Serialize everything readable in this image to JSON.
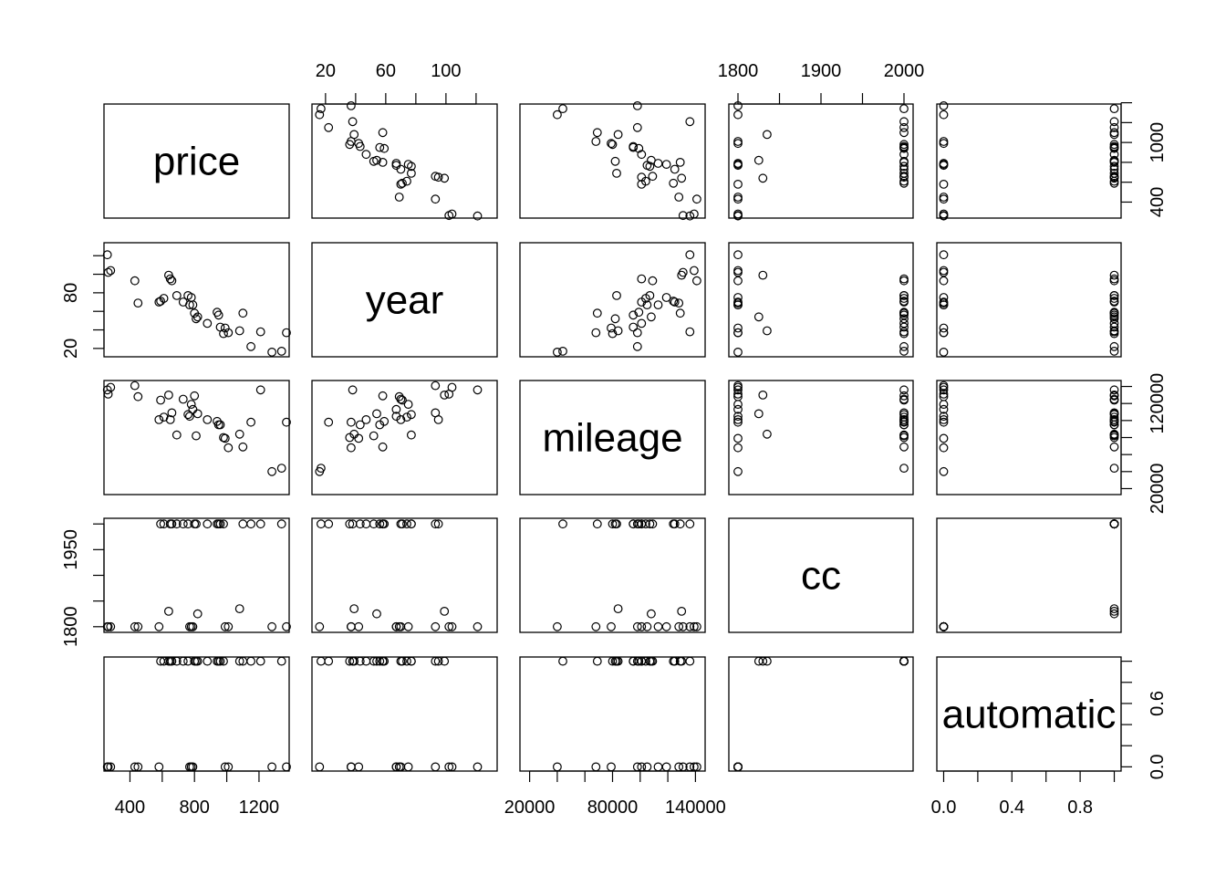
{
  "chart_data": {
    "type": "scatter",
    "subtype": "pairs-matrix",
    "variables": [
      "price",
      "year",
      "mileage",
      "cc",
      "automatic"
    ],
    "axis_ranges": {
      "price": [
        239,
        1387
      ],
      "year": [
        11,
        134
      ],
      "mileage": [
        13000,
        147000
      ],
      "cc": [
        1789,
        2011
      ],
      "automatic": [
        -0.04,
        1.04
      ]
    },
    "tick_labels": {
      "price": [
        400,
        800,
        1200
      ],
      "year": [
        20,
        60,
        100
      ],
      "mileage": [
        20000,
        80000,
        140000
      ],
      "cc": [
        1800,
        1900,
        2000
      ],
      "automatic": [
        0.0,
        0.4,
        0.8
      ]
    },
    "tick_label_text": {
      "price": [
        "400",
        "800",
        "1200"
      ],
      "year_top": [
        "20",
        "60",
        "100"
      ],
      "year_left": [
        "20",
        "80"
      ],
      "mileage_bottom": [
        "20000",
        "80000",
        "140000"
      ],
      "mileage_right": [
        "20000",
        "120000"
      ],
      "cc_top": [
        "1800",
        "1900",
        "2000"
      ],
      "cc_left": [
        "1800",
        "1950"
      ],
      "price_right": [
        "400",
        "1000"
      ],
      "automatic_bottom": [
        "0.0",
        "0.4",
        "0.8"
      ],
      "automatic_right": [
        "0.0",
        "0.6"
      ]
    },
    "minor_ticks": {
      "price": [
        400,
        600,
        800,
        1000,
        1200
      ],
      "year": [
        20,
        40,
        60,
        80,
        100,
        120
      ],
      "mileage": [
        20000,
        40000,
        60000,
        80000,
        100000,
        120000,
        140000
      ],
      "cc": [
        1800,
        1850,
        1900,
        1950,
        2000
      ],
      "automatic": [
        0.0,
        0.2,
        0.4,
        0.6,
        0.8,
        1.0
      ],
      "price_right": [
        400,
        600,
        800,
        1000,
        1200,
        1400
      ],
      "year_left": [
        20,
        40,
        60,
        80,
        100,
        120
      ],
      "mileage_right": [
        20000,
        40000,
        60000,
        80000,
        100000,
        120000,
        140000
      ],
      "cc_left": [
        1800,
        1850,
        1900,
        1950,
        2000
      ],
      "automatic_right": [
        0.0,
        0.2,
        0.4,
        0.6,
        0.8,
        1.0
      ]
    },
    "grid": false,
    "observations": [
      {
        "price": 260,
        "year": 121,
        "mileage": 136000,
        "cc": 1800,
        "automatic": 0
      },
      {
        "price": 265,
        "year": 102,
        "mileage": 131000,
        "cc": 1800,
        "automatic": 0
      },
      {
        "price": 280,
        "year": 104,
        "mileage": 139000,
        "cc": 1800,
        "automatic": 0
      },
      {
        "price": 430,
        "year": 93,
        "mileage": 141000,
        "cc": 1800,
        "automatic": 0
      },
      {
        "price": 450,
        "year": 69,
        "mileage": 128000,
        "cc": 1800,
        "automatic": 0
      },
      {
        "price": 580,
        "year": 70,
        "mileage": 101000,
        "cc": 1800,
        "automatic": 0
      },
      {
        "price": 590,
        "year": 71,
        "mileage": 124000,
        "cc": 2000,
        "automatic": 1
      },
      {
        "price": 610,
        "year": 74,
        "mileage": 104000,
        "cc": 2000,
        "automatic": 1
      },
      {
        "price": 640,
        "year": 99,
        "mileage": 130000,
        "cc": 1830,
        "automatic": 1
      },
      {
        "price": 650,
        "year": 95,
        "mileage": 101000,
        "cc": 2000,
        "automatic": 1
      },
      {
        "price": 660,
        "year": 93,
        "mileage": 109000,
        "cc": 2000,
        "automatic": 1
      },
      {
        "price": 690,
        "year": 77,
        "mileage": 83000,
        "cc": 2000,
        "automatic": 1
      },
      {
        "price": 730,
        "year": 70,
        "mileage": 125000,
        "cc": 2000,
        "automatic": 1
      },
      {
        "price": 760,
        "year": 77,
        "mileage": 107000,
        "cc": 2000,
        "automatic": 1
      },
      {
        "price": 770,
        "year": 67,
        "mileage": 105000,
        "cc": 1800,
        "automatic": 0
      },
      {
        "price": 780,
        "year": 75,
        "mileage": 119000,
        "cc": 1800,
        "automatic": 0
      },
      {
        "price": 790,
        "year": 67,
        "mileage": 113000,
        "cc": 1800,
        "automatic": 0
      },
      {
        "price": 800,
        "year": 58,
        "mileage": 129000,
        "cc": 2000,
        "automatic": 1
      },
      {
        "price": 810,
        "year": 52,
        "mileage": 82000,
        "cc": 2000,
        "automatic": 1
      },
      {
        "price": 820,
        "year": 54,
        "mileage": 108000,
        "cc": 1825,
        "automatic": 1
      },
      {
        "price": 880,
        "year": 47,
        "mileage": 101000,
        "cc": 2000,
        "automatic": 1
      },
      {
        "price": 940,
        "year": 59,
        "mileage": 99000,
        "cc": 2000,
        "automatic": 1
      },
      {
        "price": 950,
        "year": 56,
        "mileage": 95000,
        "cc": 2000,
        "automatic": 1
      },
      {
        "price": 960,
        "year": 43,
        "mileage": 95000,
        "cc": 2000,
        "automatic": 1
      },
      {
        "price": 980,
        "year": 36,
        "mileage": 80000,
        "cc": 2000,
        "automatic": 1
      },
      {
        "price": 990,
        "year": 42,
        "mileage": 79000,
        "cc": 1800,
        "automatic": 0
      },
      {
        "price": 1010,
        "year": 37,
        "mileage": 68000,
        "cc": 1800,
        "automatic": 0
      },
      {
        "price": 1080,
        "year": 39,
        "mileage": 84000,
        "cc": 1835,
        "automatic": 1
      },
      {
        "price": 1100,
        "year": 58,
        "mileage": 69000,
        "cc": 2000,
        "automatic": 1
      },
      {
        "price": 1150,
        "year": 22,
        "mileage": 98000,
        "cc": 2000,
        "automatic": 1
      },
      {
        "price": 1210,
        "year": 38,
        "mileage": 136000,
        "cc": 2000,
        "automatic": 1
      },
      {
        "price": 1280,
        "year": 16,
        "mileage": 40000,
        "cc": 1800,
        "automatic": 0
      },
      {
        "price": 1340,
        "year": 17,
        "mileage": 44000,
        "cc": 2000,
        "automatic": 1
      },
      {
        "price": 1370,
        "year": 37,
        "mileage": 98000,
        "cc": 1800,
        "automatic": 0
      }
    ]
  }
}
